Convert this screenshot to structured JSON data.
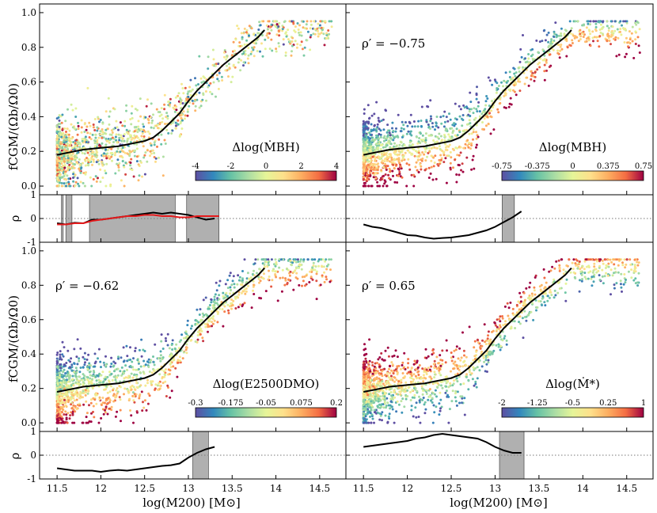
{
  "figure": {
    "xlabel": "log(M200) [M⊙]",
    "ylabel_top": "fCGM/(Ωb/Ω0)",
    "ylabel_rho": "ρ",
    "xlim": [
      11.3,
      14.8
    ],
    "ylim_main": [
      -0.05,
      1.05
    ],
    "ylim_rho": [
      -1,
      1
    ],
    "xticks": [
      "11.5",
      "12",
      "12.5",
      "13",
      "13.5",
      "14",
      "14.5"
    ],
    "yticks_main": [
      "0.0",
      "0.2",
      "0.4",
      "0.6",
      "0.8",
      "1.0"
    ],
    "yticks_rho": [
      "-1",
      "0",
      "1"
    ],
    "colormap": "Spectral_r",
    "colors": {
      "median_line": "#000000",
      "red_line": "#e41a1c",
      "shade": "#b0b0b0",
      "zero_line": "#777777"
    }
  },
  "chart_data": [
    {
      "type": "scatter",
      "panel": "top-left",
      "colorbar_label": "Δlog(ṀBH)",
      "colorbar_ticks": [
        "-4",
        "-2",
        "0",
        "2",
        "4"
      ],
      "annotation": "",
      "median_line": {
        "x": [
          11.5,
          11.6,
          11.7,
          11.8,
          11.9,
          12.0,
          12.1,
          12.2,
          12.3,
          12.4,
          12.5,
          12.6,
          12.7,
          12.8,
          12.9,
          13.0,
          13.1,
          13.2,
          13.3,
          13.4,
          13.5,
          13.6,
          13.7,
          13.8,
          13.87
        ],
        "y": [
          0.18,
          0.19,
          0.2,
          0.21,
          0.215,
          0.22,
          0.225,
          0.23,
          0.24,
          0.25,
          0.26,
          0.28,
          0.32,
          0.37,
          0.42,
          0.49,
          0.55,
          0.6,
          0.65,
          0.7,
          0.74,
          0.78,
          0.82,
          0.86,
          0.9
        ]
      },
      "correlation_panel": {
        "rho_x": [
          11.5,
          11.6,
          11.7,
          11.8,
          11.9,
          12.0,
          12.1,
          12.2,
          12.3,
          12.4,
          12.5,
          12.6,
          12.7,
          12.8,
          12.9,
          13.0,
          13.1,
          13.2,
          13.3
        ],
        "rho_y": [
          -0.2,
          -0.25,
          -0.18,
          -0.2,
          -0.05,
          -0.05,
          0.0,
          0.05,
          0.1,
          0.15,
          0.2,
          0.25,
          0.2,
          0.25,
          0.2,
          0.15,
          0.05,
          -0.05,
          0.0
        ],
        "red_line": {
          "x": [
            11.5,
            11.6,
            11.7,
            11.8,
            11.9,
            12.0,
            12.1,
            12.2,
            12.3,
            12.4,
            12.5,
            12.6,
            12.7,
            12.8,
            12.9,
            13.0,
            13.1,
            13.2,
            13.35
          ],
          "y": [
            -0.25,
            -0.25,
            -0.2,
            -0.2,
            -0.1,
            -0.05,
            0.0,
            0.05,
            0.1,
            0.1,
            0.15,
            0.15,
            0.1,
            0.1,
            0.05,
            0.05,
            0.1,
            0.1,
            0.1
          ]
        },
        "shaded_x_ranges": [
          [
            11.55,
            11.57
          ],
          [
            11.6,
            11.67
          ],
          [
            11.87,
            12.85
          ],
          [
            12.98,
            13.35
          ]
        ]
      }
    },
    {
      "type": "scatter",
      "panel": "top-right",
      "colorbar_label": "Δlog(MBH)",
      "colorbar_ticks": [
        "-0.75",
        "-0.375",
        "0",
        "0.375",
        "0.75"
      ],
      "annotation": "ρ′ = −0.75",
      "median_line": {
        "x": [
          11.5,
          11.6,
          11.7,
          11.8,
          11.9,
          12.0,
          12.1,
          12.2,
          12.3,
          12.4,
          12.5,
          12.6,
          12.7,
          12.8,
          12.9,
          13.0,
          13.1,
          13.2,
          13.3,
          13.4,
          13.5,
          13.6,
          13.7,
          13.8,
          13.87
        ],
        "y": [
          0.18,
          0.19,
          0.2,
          0.21,
          0.215,
          0.22,
          0.225,
          0.23,
          0.24,
          0.25,
          0.26,
          0.28,
          0.32,
          0.37,
          0.42,
          0.49,
          0.55,
          0.6,
          0.65,
          0.7,
          0.74,
          0.78,
          0.82,
          0.86,
          0.9
        ]
      },
      "correlation_panel": {
        "rho_x": [
          11.5,
          11.6,
          11.7,
          11.8,
          11.9,
          12.0,
          12.1,
          12.2,
          12.3,
          12.4,
          12.5,
          12.6,
          12.7,
          12.8,
          12.9,
          13.0,
          13.1,
          13.2,
          13.3
        ],
        "rho_y": [
          -0.25,
          -0.35,
          -0.4,
          -0.5,
          -0.6,
          -0.7,
          -0.72,
          -0.8,
          -0.85,
          -0.82,
          -0.8,
          -0.75,
          -0.7,
          -0.6,
          -0.5,
          -0.35,
          -0.15,
          0.05,
          0.3
        ],
        "shaded_x_ranges": [
          [
            13.08,
            13.22
          ]
        ]
      }
    },
    {
      "type": "scatter",
      "panel": "bottom-left",
      "colorbar_label": "Δlog(E2500DMO)",
      "colorbar_ticks": [
        "-0.3",
        "-0.175",
        "-0.05",
        "0.075",
        "0.2"
      ],
      "annotation": "ρ′ = −0.62",
      "median_line": {
        "x": [
          11.5,
          11.6,
          11.7,
          11.8,
          11.9,
          12.0,
          12.1,
          12.2,
          12.3,
          12.4,
          12.5,
          12.6,
          12.7,
          12.8,
          12.9,
          13.0,
          13.1,
          13.2,
          13.3,
          13.4,
          13.5,
          13.6,
          13.7,
          13.8,
          13.87
        ],
        "y": [
          0.18,
          0.19,
          0.2,
          0.21,
          0.215,
          0.22,
          0.225,
          0.23,
          0.24,
          0.25,
          0.26,
          0.28,
          0.32,
          0.37,
          0.42,
          0.49,
          0.55,
          0.6,
          0.65,
          0.7,
          0.74,
          0.78,
          0.82,
          0.86,
          0.9
        ]
      },
      "correlation_panel": {
        "rho_x": [
          11.5,
          11.6,
          11.7,
          11.8,
          11.9,
          12.0,
          12.1,
          12.2,
          12.3,
          12.4,
          12.5,
          12.6,
          12.7,
          12.8,
          12.9,
          13.0,
          13.1,
          13.2,
          13.3
        ],
        "rho_y": [
          -0.55,
          -0.6,
          -0.65,
          -0.65,
          -0.65,
          -0.7,
          -0.65,
          -0.62,
          -0.65,
          -0.6,
          -0.55,
          -0.5,
          -0.45,
          -0.42,
          -0.35,
          -0.1,
          0.1,
          0.25,
          0.35
        ],
        "shaded_x_ranges": [
          [
            13.05,
            13.23
          ]
        ]
      }
    },
    {
      "type": "scatter",
      "panel": "bottom-right",
      "colorbar_label": "Δlog(Ṁ*)",
      "colorbar_ticks": [
        "-2",
        "-1.25",
        "-0.5",
        "0.25",
        "1"
      ],
      "annotation": "ρ′ = 0.65",
      "median_line": {
        "x": [
          11.5,
          11.6,
          11.7,
          11.8,
          11.9,
          12.0,
          12.1,
          12.2,
          12.3,
          12.4,
          12.5,
          12.6,
          12.7,
          12.8,
          12.9,
          13.0,
          13.1,
          13.2,
          13.3,
          13.4,
          13.5,
          13.6,
          13.7,
          13.8,
          13.87
        ],
        "y": [
          0.18,
          0.19,
          0.2,
          0.21,
          0.215,
          0.22,
          0.225,
          0.23,
          0.24,
          0.25,
          0.26,
          0.28,
          0.32,
          0.37,
          0.42,
          0.49,
          0.55,
          0.6,
          0.65,
          0.7,
          0.74,
          0.78,
          0.82,
          0.86,
          0.9
        ]
      },
      "correlation_panel": {
        "rho_x": [
          11.5,
          11.6,
          11.7,
          11.8,
          11.9,
          12.0,
          12.1,
          12.2,
          12.3,
          12.4,
          12.5,
          12.6,
          12.7,
          12.8,
          12.9,
          13.0,
          13.1,
          13.2,
          13.3
        ],
        "rho_y": [
          0.35,
          0.4,
          0.45,
          0.5,
          0.55,
          0.6,
          0.7,
          0.75,
          0.85,
          0.9,
          0.85,
          0.8,
          0.75,
          0.7,
          0.55,
          0.35,
          0.2,
          0.1,
          0.1
        ],
        "shaded_x_ranges": [
          [
            13.05,
            13.33
          ]
        ]
      }
    }
  ]
}
